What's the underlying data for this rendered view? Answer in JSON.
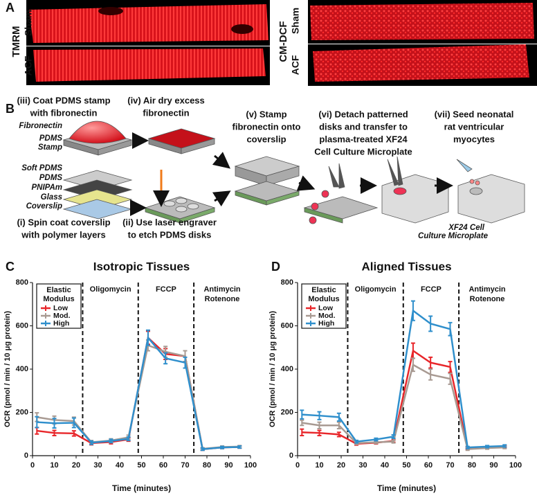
{
  "panel_labels": [
    "A",
    "B",
    "C",
    "D"
  ],
  "panel_a": {
    "left": {
      "stain": "TMRM",
      "rows": [
        "Sham",
        "ACF"
      ]
    },
    "right": {
      "stain": "CM-DCF",
      "rows": [
        "Sham",
        "ACF"
      ]
    }
  },
  "panel_b": {
    "steps": [
      {
        "lines": [
          "(i) Spin coat coverslip",
          "with polymer layers"
        ]
      },
      {
        "lines": [
          "(ii) Use laser engraver",
          "to etch PDMS disks"
        ]
      },
      {
        "lines": [
          "(iii) Coat PDMS stamp",
          "with fibronectin"
        ]
      },
      {
        "lines": [
          "(iv) Air dry excess",
          "fibronectin"
        ]
      },
      {
        "lines": [
          "(v) Stamp",
          "fibronectin onto",
          "coverslip"
        ]
      },
      {
        "lines": [
          "(vi) Detach patterned",
          "disks and transfer to",
          "plasma-treated XF24",
          "Cell Culture Microplate"
        ]
      },
      {
        "lines": [
          "(vii) Seed neonatal",
          "rat ventricular",
          "myocytes"
        ]
      }
    ],
    "layer_labels": [
      "Fibronectin",
      "PDMS",
      "Stamp",
      "Soft PDMS",
      "PDMS",
      "PNIPAm",
      "Glass",
      "Coverslip",
      "XF24 Cell",
      "Culture Microplate"
    ]
  },
  "chart_data": [
    {
      "type": "line",
      "title": "Isotropic Tissues",
      "x_label": "Time (minutes)",
      "y_label": "OCR (pmol / min / 10 μg protein)",
      "x": [
        2,
        10,
        19,
        27,
        36,
        44,
        53,
        61,
        70,
        78,
        87,
        95
      ],
      "xlim": [
        0,
        100
      ],
      "xticks": [
        0,
        10,
        20,
        30,
        40,
        50,
        60,
        70,
        80,
        90,
        100
      ],
      "ylim": [
        0,
        800
      ],
      "yticks": [
        0,
        200,
        400,
        600,
        800
      ],
      "phase_lines": [
        23,
        48.5,
        74
      ],
      "phase_labels": [
        [
          "Oligomycin"
        ],
        [
          "FCCP"
        ],
        [
          "Antimycin",
          "Rotenone"
        ]
      ],
      "legend_title": [
        "Elastic",
        "Modulus"
      ],
      "legend": "upper left",
      "series": [
        {
          "name": "Low",
          "color": "#e8262a",
          "values": [
            115,
            105,
            103,
            58,
            63,
            75,
            545,
            470,
            460,
            30,
            38,
            40
          ],
          "errors": [
            15,
            12,
            12,
            8,
            8,
            8,
            30,
            25,
            25,
            5,
            5,
            5
          ]
        },
        {
          "name": "Mod.",
          "color": "#a89a92",
          "values": [
            178,
            165,
            160,
            62,
            70,
            85,
            510,
            480,
            460,
            32,
            40,
            42
          ],
          "errors": [
            20,
            18,
            18,
            8,
            8,
            10,
            25,
            25,
            25,
            5,
            5,
            5
          ]
        },
        {
          "name": "High",
          "color": "#2f8fcc",
          "values": [
            155,
            150,
            152,
            60,
            68,
            78,
            545,
            450,
            430,
            30,
            38,
            40
          ],
          "errors": [
            25,
            22,
            22,
            8,
            8,
            8,
            35,
            25,
            25,
            5,
            5,
            5
          ]
        }
      ]
    },
    {
      "type": "line",
      "title": "Aligned Tissues",
      "x_label": "Time (minutes)",
      "y_label": "OCR (pmol / min / 10 μg protein)",
      "x": [
        2,
        10,
        19,
        27,
        36,
        44,
        53,
        61,
        70,
        78,
        87,
        95
      ],
      "xlim": [
        0,
        100
      ],
      "xticks": [
        0,
        10,
        20,
        30,
        40,
        50,
        60,
        70,
        80,
        90,
        100
      ],
      "ylim": [
        0,
        800
      ],
      "yticks": [
        0,
        200,
        400,
        600,
        800
      ],
      "phase_lines": [
        23,
        48.5,
        74
      ],
      "phase_labels": [
        [
          "Oligomycin"
        ],
        [
          "FCCP"
        ],
        [
          "Antimycin",
          "Rotenone"
        ]
      ],
      "legend_title": [
        "Elastic",
        "Modulus"
      ],
      "legend": "upper left",
      "series": [
        {
          "name": "Low",
          "color": "#e8262a",
          "values": [
            108,
            105,
            98,
            55,
            60,
            68,
            485,
            430,
            410,
            35,
            40,
            42
          ],
          "errors": [
            15,
            12,
            10,
            6,
            6,
            6,
            35,
            25,
            25,
            5,
            5,
            5
          ]
        },
        {
          "name": "Mod.",
          "color": "#a89a92",
          "values": [
            152,
            140,
            140,
            58,
            62,
            65,
            420,
            375,
            355,
            30,
            35,
            38
          ],
          "errors": [
            12,
            15,
            15,
            6,
            6,
            6,
            30,
            25,
            25,
            5,
            5,
            5
          ]
        },
        {
          "name": "High",
          "color": "#2f8fcc",
          "values": [
            190,
            185,
            178,
            65,
            75,
            88,
            670,
            610,
            585,
            38,
            42,
            45
          ],
          "errors": [
            20,
            18,
            18,
            6,
            6,
            8,
            45,
            35,
            30,
            5,
            5,
            5
          ]
        }
      ]
    }
  ]
}
